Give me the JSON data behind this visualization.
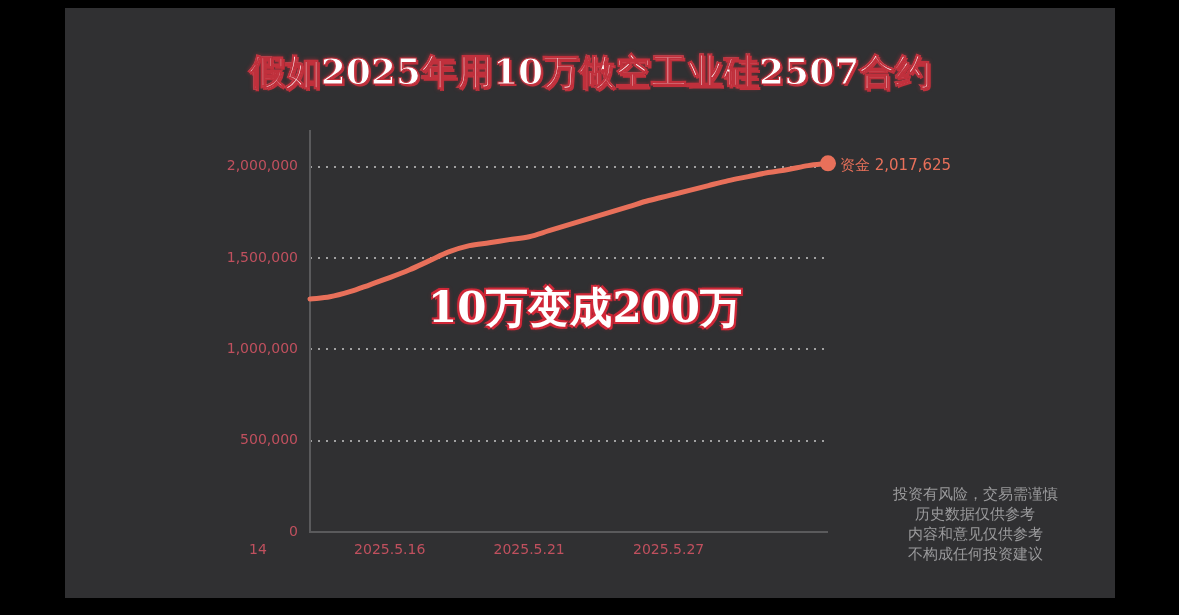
{
  "chart_data": {
    "type": "line",
    "title": "假如2025年用10万做空工业硅2507合约",
    "categories": [
      null,
      null,
      null,
      null,
      "2025.5.16",
      null,
      null,
      null,
      null,
      null,
      null,
      "2025.5.21",
      null,
      null,
      null,
      null,
      null,
      null,
      "2025.5.27",
      null,
      null,
      null,
      null,
      null,
      null,
      null,
      null
    ],
    "series": [
      {
        "name": "资金",
        "color": "#e8705a",
        "values": [
          1275000,
          1287000,
          1315000,
          1353000,
          1392000,
          1435000,
          1485000,
          1534000,
          1567000,
          1583000,
          1600000,
          1616000,
          1649000,
          1682000,
          1715000,
          1748000,
          1781000,
          1814000,
          1841000,
          1868000,
          1896000,
          1923000,
          1945000,
          1967000,
          1984000,
          2005000,
          2017625
        ],
        "value_labels": [
          null,
          null,
          null,
          null,
          null,
          null,
          null,
          null,
          null,
          null,
          null,
          null,
          null,
          null,
          null,
          null,
          null,
          null,
          null,
          null,
          null,
          null,
          null,
          null,
          null,
          null,
          "2,017,625"
        ]
      }
    ],
    "ylim": [
      0,
      2200000
    ],
    "yticks": [
      0,
      {
        "value": 500000,
        "label": "500,000"
      },
      {
        "value": 1000000,
        "label": "1,000,000"
      },
      {
        "value": 1500000,
        "label": "1,500,000"
      },
      {
        "value": 2000000,
        "label": "2,000,000"
      }
    ],
    "grid": "y",
    "legend": false,
    "line_style": "solid",
    "annotations": [
      "10万变成200万",
      "投资有风险，交易需谨慎",
      "历史数据仅供参考",
      "内容和意见仅供参考",
      "不构成任何投资建议",
      "14"
    ]
  }
}
